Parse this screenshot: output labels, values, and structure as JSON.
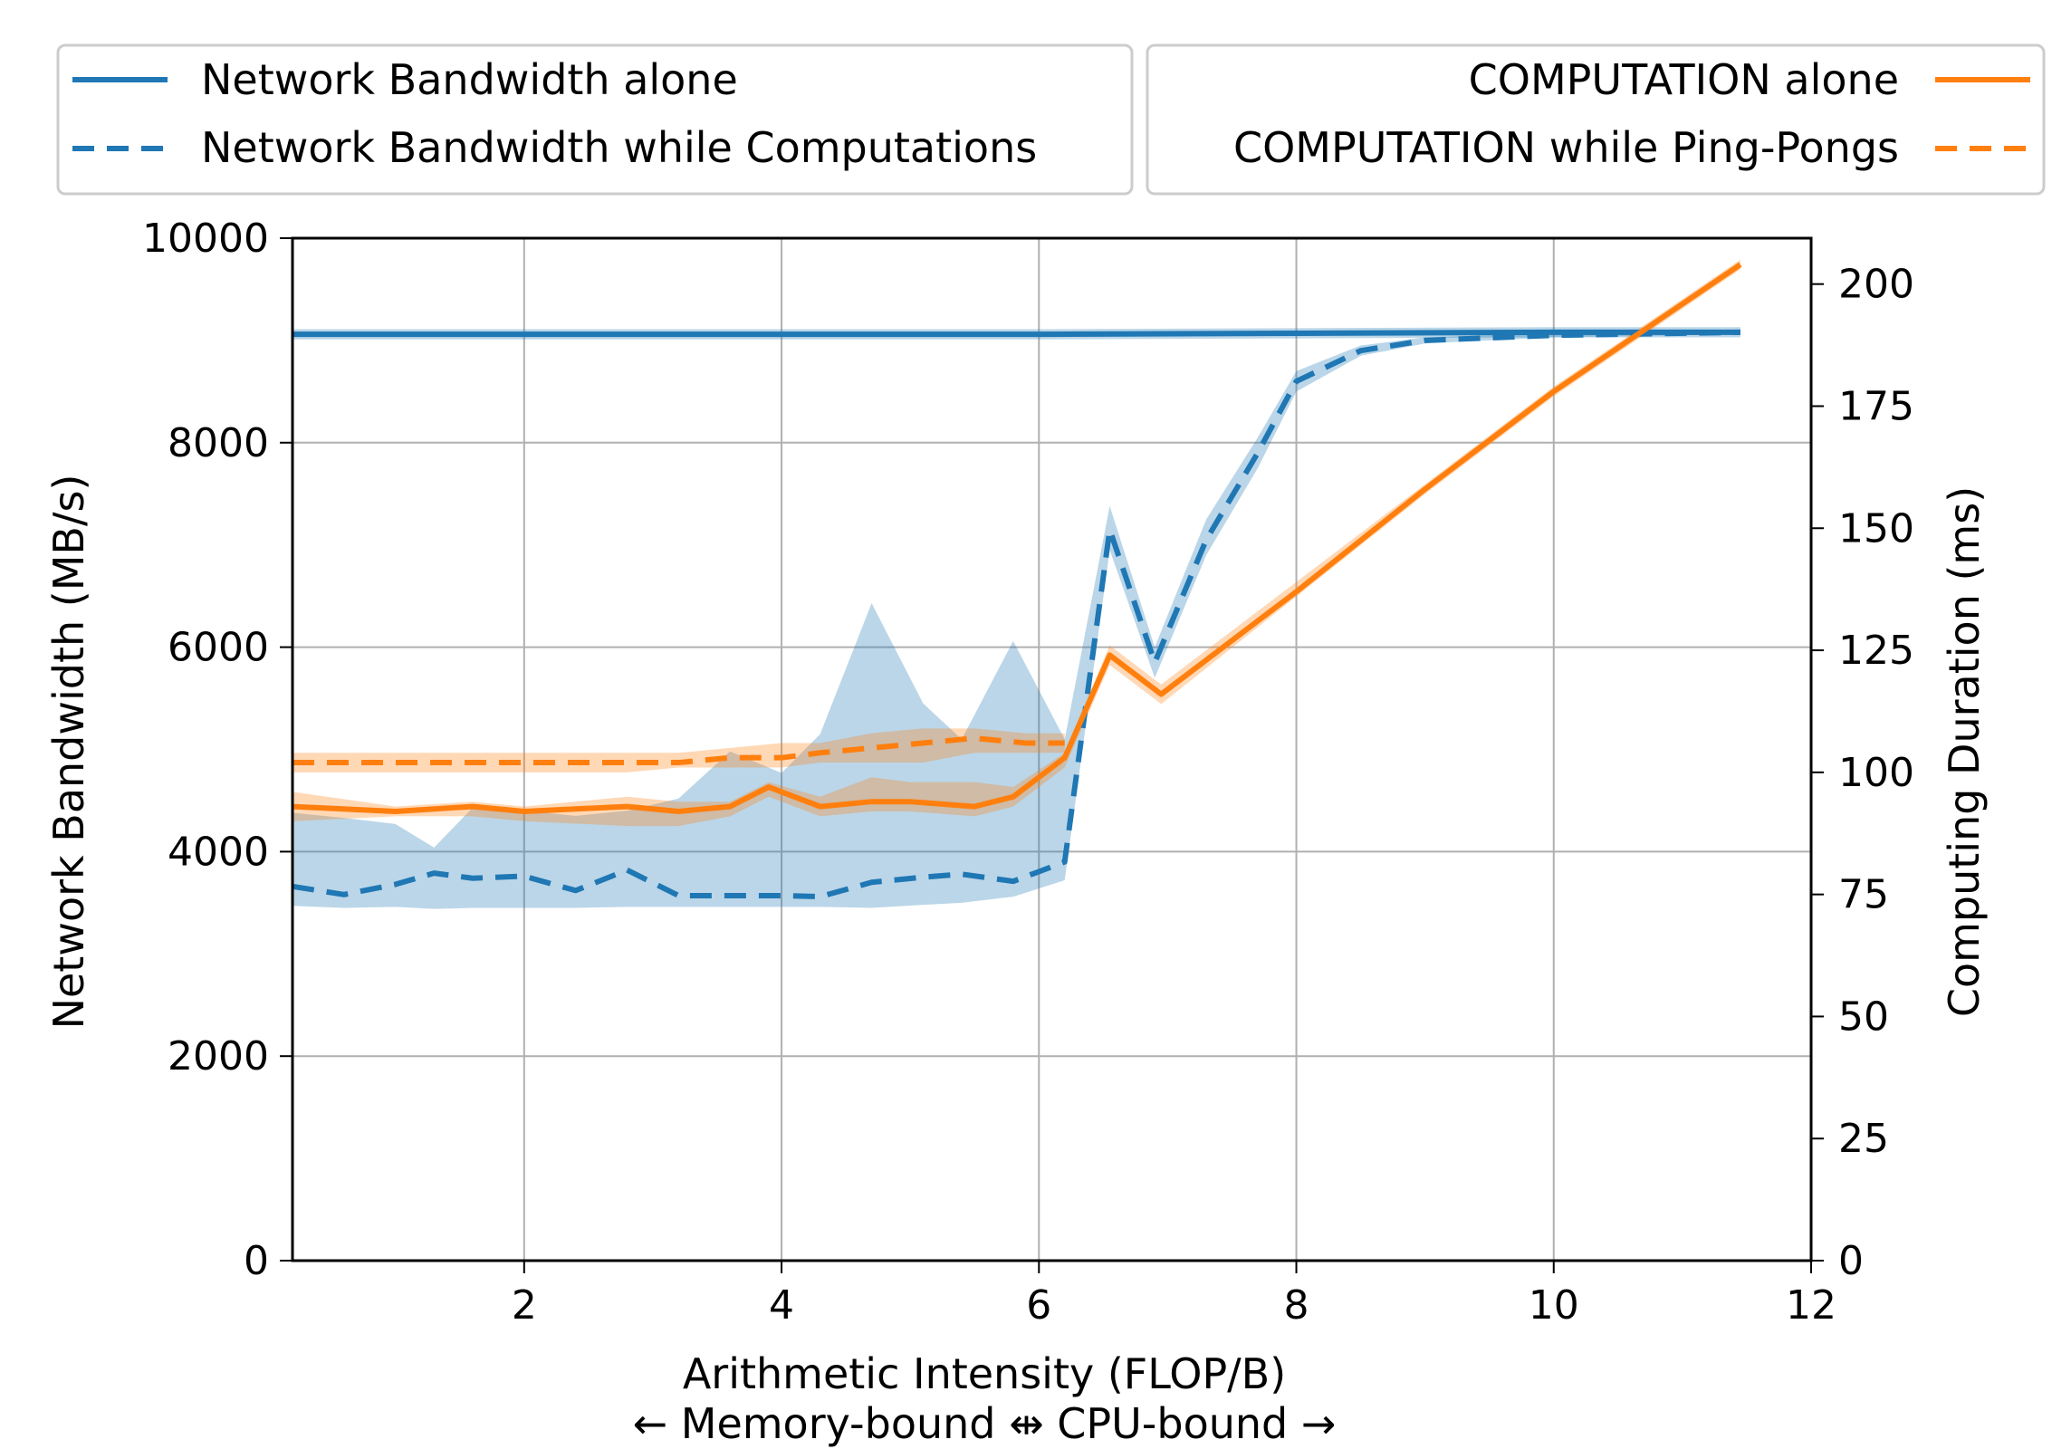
{
  "chart_data": {
    "type": "line",
    "xlabel": "Arithmetic Intensity (FLOP/B)",
    "xlabel_sub": "← Memory-bound ⇹ CPU-bound →",
    "ylabel": "Network Bandwidth (MB/s)",
    "y2label": "Computing Duration (ms)",
    "xlim": [
      0.2,
      12
    ],
    "ylim": [
      0,
      10000
    ],
    "y2lim": [
      0,
      209.4
    ],
    "xticks": [
      "2",
      "4",
      "6",
      "8",
      "10",
      "12"
    ],
    "yticks": [
      "0",
      "2000",
      "4000",
      "6000",
      "8000",
      "10000"
    ],
    "y2ticks": [
      "0",
      "25",
      "50",
      "75",
      "100",
      "125",
      "150",
      "175",
      "200"
    ],
    "grid": true,
    "colors": {
      "blue": "#1f77b4",
      "orange": "#ff7f0e"
    },
    "legend_left": [
      "Network Bandwidth alone",
      "Network Bandwidth while Computations"
    ],
    "legend_right": [
      "COMPUTATION alone",
      "COMPUTATION while Ping-Pongs"
    ],
    "series": [
      {
        "name": "Network Bandwidth alone",
        "axis": "left",
        "color": "#1f77b4",
        "dash": false,
        "x": [
          0.2,
          2,
          4,
          6,
          8,
          10,
          11.45
        ],
        "y": [
          9060,
          9060,
          9060,
          9060,
          9070,
          9080,
          9080
        ],
        "band_low": [
          9010,
          9010,
          9010,
          9010,
          9020,
          9030,
          9030
        ],
        "band_high": [
          9110,
          9110,
          9110,
          9110,
          9120,
          9130,
          9130
        ]
      },
      {
        "name": "Network Bandwidth while Computations",
        "axis": "left",
        "color": "#1f77b4",
        "dash": true,
        "x": [
          0.2,
          0.6,
          1.0,
          1.3,
          1.6,
          2.0,
          2.4,
          2.8,
          3.2,
          3.6,
          4.0,
          4.3,
          4.7,
          5.1,
          5.4,
          5.8,
          6.2,
          6.55,
          6.9,
          7.3,
          7.7,
          8.0,
          8.5,
          9.0,
          10.0,
          11.45
        ],
        "y": [
          3660,
          3580,
          3680,
          3790,
          3740,
          3760,
          3620,
          3820,
          3570,
          3570,
          3570,
          3560,
          3700,
          3750,
          3780,
          3710,
          3900,
          7150,
          5850,
          7050,
          7900,
          8600,
          8900,
          9000,
          9050,
          9080
        ],
        "band_low": [
          3470,
          3450,
          3460,
          3440,
          3450,
          3450,
          3450,
          3460,
          3460,
          3460,
          3460,
          3460,
          3450,
          3480,
          3500,
          3560,
          3720,
          6950,
          5700,
          6900,
          7750,
          8500,
          8850,
          8970,
          9030,
          9060
        ],
        "band_high": [
          4380,
          4330,
          4270,
          4040,
          4430,
          4400,
          4350,
          4400,
          4520,
          4980,
          4770,
          5150,
          6430,
          5450,
          5100,
          6060,
          5100,
          7380,
          6000,
          7250,
          8050,
          8700,
          8950,
          9030,
          9070,
          9100
        ]
      },
      {
        "name": "COMPUTATION alone",
        "axis": "right",
        "color": "#ff7f0e",
        "dash": false,
        "x": [
          0.2,
          1.0,
          1.6,
          2.0,
          2.8,
          3.2,
          3.6,
          3.9,
          4.3,
          4.7,
          5.0,
          5.5,
          5.8,
          6.2,
          6.55,
          6.95,
          8.0,
          9.0,
          10.0,
          11.45
        ],
        "y": [
          93,
          92,
          93,
          92,
          93,
          92,
          93,
          97,
          93,
          94,
          94,
          93,
          95,
          103,
          124,
          116,
          137,
          158,
          178,
          204
        ],
        "band_low": [
          90,
          91,
          91,
          90,
          89,
          89,
          91,
          95,
          91,
          92,
          92,
          91,
          93,
          101,
          122,
          114,
          136,
          157,
          177,
          203
        ],
        "band_high": [
          96,
          93,
          94,
          93,
          95,
          94,
          94,
          98,
          95,
          99,
          98,
          98,
          97,
          104,
          126,
          118,
          139,
          159,
          179,
          205
        ]
      },
      {
        "name": "COMPUTATION while Ping-Pongs",
        "axis": "right",
        "color": "#ff7f0e",
        "dash": true,
        "x": [
          0.2,
          0.6,
          1.0,
          1.6,
          2.0,
          2.4,
          2.8,
          3.2,
          3.6,
          4.0,
          4.3,
          4.7,
          5.1,
          5.5,
          5.9,
          6.2
        ],
        "y": [
          102,
          102,
          102,
          102,
          102,
          102,
          102,
          102,
          103,
          103,
          104,
          105,
          106,
          107,
          106,
          106
        ],
        "band_low": [
          100,
          100,
          100,
          100,
          100,
          100,
          100,
          101,
          101,
          101,
          102,
          102,
          102,
          104,
          104,
          104
        ],
        "band_high": [
          104,
          104,
          104,
          104,
          104,
          104,
          104,
          104,
          105,
          106,
          106,
          108,
          109,
          109,
          108,
          108
        ]
      }
    ]
  }
}
